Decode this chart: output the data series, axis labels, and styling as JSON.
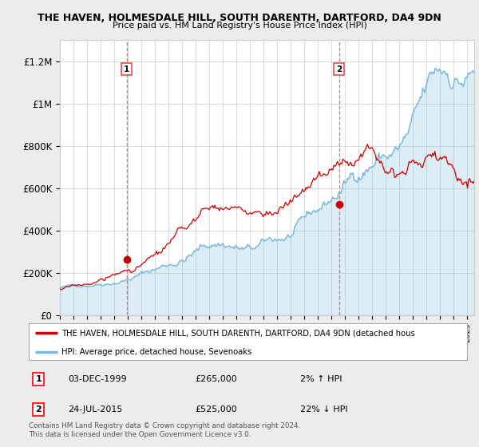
{
  "title1": "THE HAVEN, HOLMESDALE HILL, SOUTH DARENTH, DARTFORD, DA4 9DN",
  "title2": "Price paid vs. HM Land Registry's House Price Index (HPI)",
  "ylabel_ticks": [
    "£0",
    "£200K",
    "£400K",
    "£600K",
    "£800K",
    "£1M",
    "£1.2M"
  ],
  "ylabel_values": [
    0,
    200000,
    400000,
    600000,
    800000,
    1000000,
    1200000
  ],
  "ylim": [
    0,
    1300000
  ],
  "x_start_year": 1995.0,
  "x_end_year": 2025.5,
  "hpi_color": "#7ab8d8",
  "hpi_fill_color": "#d0e8f5",
  "property_color": "#cc0000",
  "dashed_line_color": "#e05050",
  "marker1_year": 1999.92,
  "marker1_value": 265000,
  "marker2_year": 2015.55,
  "marker2_value": 525000,
  "legend_label1": "THE HAVEN, HOLMESDALE HILL, SOUTH DARENTH, DARTFORD, DA4 9DN (detached hous",
  "legend_label2": "HPI: Average price, detached house, Sevenoaks",
  "table_row1": [
    "1",
    "03-DEC-1999",
    "£265,000",
    "2% ↑ HPI"
  ],
  "table_row2": [
    "2",
    "24-JUL-2015",
    "£525,000",
    "22% ↓ HPI"
  ],
  "footnote": "Contains HM Land Registry data © Crown copyright and database right 2024.\nThis data is licensed under the Open Government Licence v3.0.",
  "background_color": "#ececec",
  "plot_bg_color": "#ffffff",
  "plot_fill_color": "#ddeef7",
  "grid_color": "#cccccc"
}
